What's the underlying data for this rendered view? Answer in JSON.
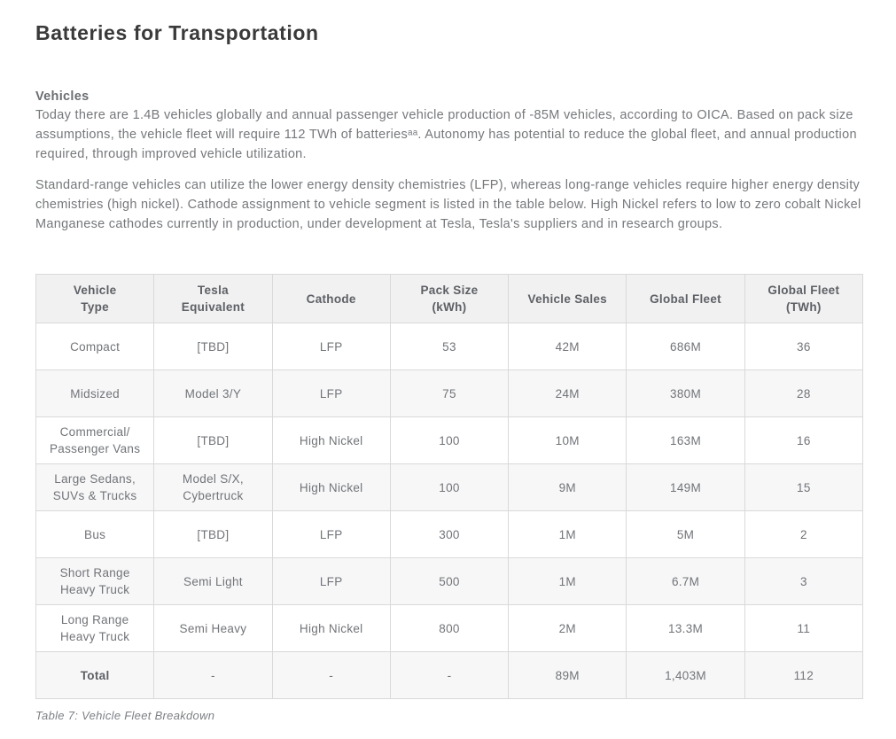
{
  "page": {
    "title": "Batteries for Transportation",
    "section_heading": "Vehicles",
    "paragraph1": "Today there are 1.4B vehicles globally and annual passenger vehicle production of -85M vehicles, according to OICA. Based on pack size assumptions, the vehicle fleet will require 112 TWh of batteriesᵃᵃ. Autonomy has potential to reduce the global fleet, and annual production required, through improved vehicle utilization.",
    "paragraph2": "Standard-range vehicles can utilize the lower energy density chemistries (LFP), whereas long-range vehicles require higher energy density chemistries (high nickel).  Cathode assignment to vehicle segment is listed in the table below. High Nickel refers to low to zero cobalt Nickel Manganese cathodes currently in production, under development at Tesla, Tesla's suppliers and in research groups.",
    "caption": "Table 7: Vehicle Fleet Breakdown"
  },
  "table": {
    "headers": [
      "Vehicle\nType",
      "Tesla\nEquivalent",
      "Cathode",
      "Pack Size\n(kWh)",
      "Vehicle Sales",
      "Global Fleet",
      "Global Fleet\n(TWh)"
    ],
    "rows": [
      [
        "Compact",
        "[TBD]",
        "LFP",
        "53",
        "42M",
        "686M",
        "36"
      ],
      [
        "Midsized",
        "Model 3/Y",
        "LFP",
        "75",
        "24M",
        "380M",
        "28"
      ],
      [
        "Commercial/\nPassenger Vans",
        "[TBD]",
        "High Nickel",
        "100",
        "10M",
        "163M",
        "16"
      ],
      [
        "Large Sedans,\nSUVs & Trucks",
        "Model S/X,\nCybertruck",
        "High Nickel",
        "100",
        "9M",
        "149M",
        "15"
      ],
      [
        "Bus",
        "[TBD]",
        "LFP",
        "300",
        "1M",
        "5M",
        "2"
      ],
      [
        "Short Range\nHeavy Truck",
        "Semi Light",
        "LFP",
        "500",
        "1M",
        "6.7M",
        "3"
      ],
      [
        "Long Range\nHeavy Truck",
        "Semi Heavy",
        "High Nickel",
        "800",
        "2M",
        "13.3M",
        "11"
      ],
      [
        "Total",
        "-",
        "-",
        "-",
        "89M",
        "1,403M",
        "112"
      ]
    ]
  },
  "colors": {
    "title_text": "#3a3a3a",
    "body_text": "#75787b",
    "table_border": "#d9d9d9",
    "table_header_bg": "#f1f1f2",
    "table_alt_row_bg": "#f7f7f8",
    "background": "#ffffff"
  }
}
